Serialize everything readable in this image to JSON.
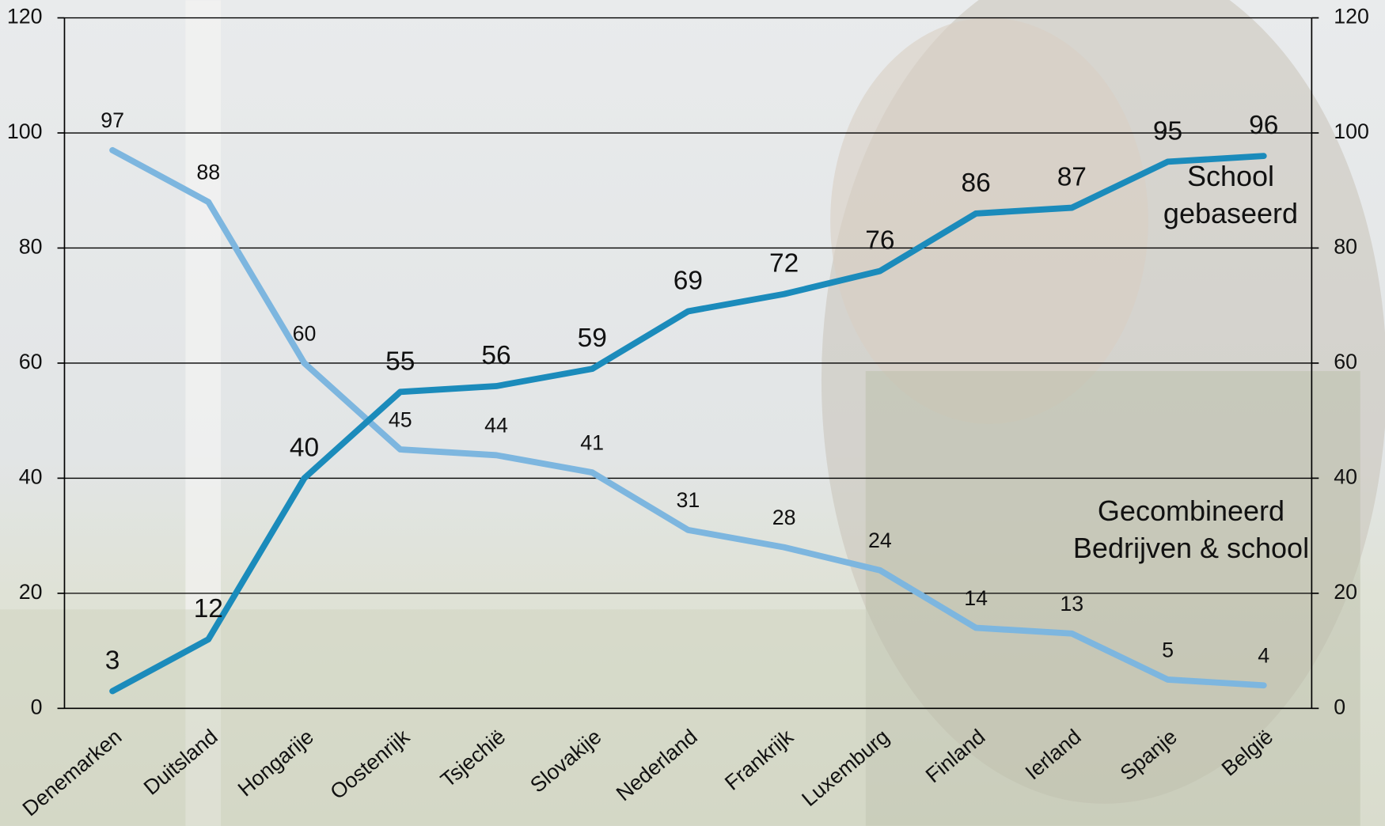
{
  "chart_data": {
    "type": "line",
    "categories": [
      "Denemarken",
      "Duitsland",
      "Hongarije",
      "Oostenrijk",
      "Tsjechië",
      "Slovakije",
      "Nederland",
      "Frankrijk",
      "Luxemburg",
      "Finland",
      "Ierland",
      "Spanje",
      "België"
    ],
    "series": [
      {
        "name": "School gebaseerd",
        "color": "#1b8bbb",
        "values": [
          3,
          12,
          40,
          55,
          56,
          59,
          69,
          72,
          76,
          86,
          87,
          95,
          96
        ]
      },
      {
        "name": "Gecombineerd Bedrijven & school",
        "color": "#7db6df",
        "values": [
          97,
          88,
          60,
          45,
          44,
          41,
          31,
          28,
          24,
          14,
          13,
          5,
          4
        ]
      }
    ],
    "ylim": [
      0,
      120
    ],
    "yticks": [
      0,
      20,
      40,
      60,
      80,
      100,
      120
    ],
    "y2lim": [
      0,
      120
    ],
    "y2ticks": [
      0,
      20,
      40,
      60,
      80,
      100,
      120
    ],
    "grid": true
  }
}
